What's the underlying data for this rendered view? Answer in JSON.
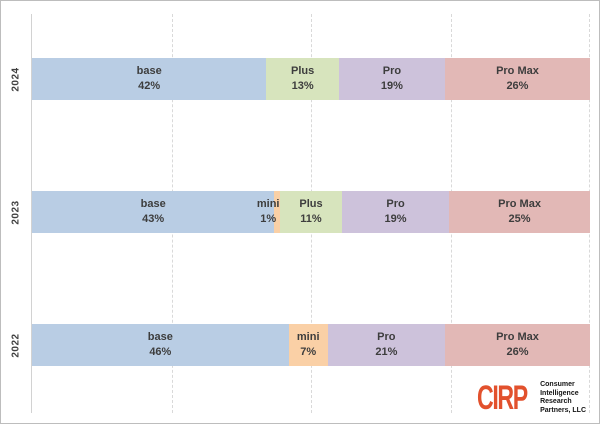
{
  "chart_data": {
    "type": "bar",
    "orientation": "horizontal-stacked",
    "title": "",
    "xlabel": "",
    "ylabel": "",
    "xlim": [
      0,
      100
    ],
    "grid": "vertical-dashed",
    "gridlines_pct": [
      25,
      50,
      75,
      100
    ],
    "legend": "none (labels inside segments)",
    "categories": [
      "2024",
      "2023",
      "2022"
    ],
    "series_colors": {
      "base": "#b9cde4",
      "mini": "#fad0a6",
      "Plus": "#d7e4bd",
      "Pro": "#cdc2db",
      "Pro Max": "#e2b8b6"
    },
    "rows": [
      {
        "year": "2024",
        "segments": [
          {
            "label": "base",
            "pct": 42,
            "pct_label": "42%"
          },
          {
            "label": "Plus",
            "pct": 13,
            "pct_label": "13%"
          },
          {
            "label": "Pro",
            "pct": 19,
            "pct_label": "19%"
          },
          {
            "label": "Pro Max",
            "pct": 26,
            "pct_label": "26%"
          }
        ]
      },
      {
        "year": "2023",
        "segments": [
          {
            "label": "base",
            "pct": 43,
            "pct_label": "43%"
          },
          {
            "label": "mini",
            "pct": 1,
            "pct_label": "1%"
          },
          {
            "label": "Plus",
            "pct": 11,
            "pct_label": "11%"
          },
          {
            "label": "Pro",
            "pct": 19,
            "pct_label": "19%"
          },
          {
            "label": "Pro Max",
            "pct": 25,
            "pct_label": "25%"
          }
        ]
      },
      {
        "year": "2022",
        "segments": [
          {
            "label": "base",
            "pct": 46,
            "pct_label": "46%"
          },
          {
            "label": "mini",
            "pct": 7,
            "pct_label": "7%"
          },
          {
            "label": "Pro",
            "pct": 21,
            "pct_label": "21%"
          },
          {
            "label": "Pro Max",
            "pct": 26,
            "pct_label": "26%"
          }
        ]
      }
    ]
  },
  "logo": {
    "brand": "CIRP",
    "brand_color": "#e2512d",
    "tagline_lines": [
      "Consumer",
      "Intelligence",
      "Research",
      "Partners, LLC"
    ]
  },
  "style_colors": {
    "gridline": "#d9d9d9",
    "axis_line": "#d2d2d2",
    "frame_border": "#bdbdbd",
    "bar_text": "#3d3d3d",
    "year_text": "#404040"
  }
}
